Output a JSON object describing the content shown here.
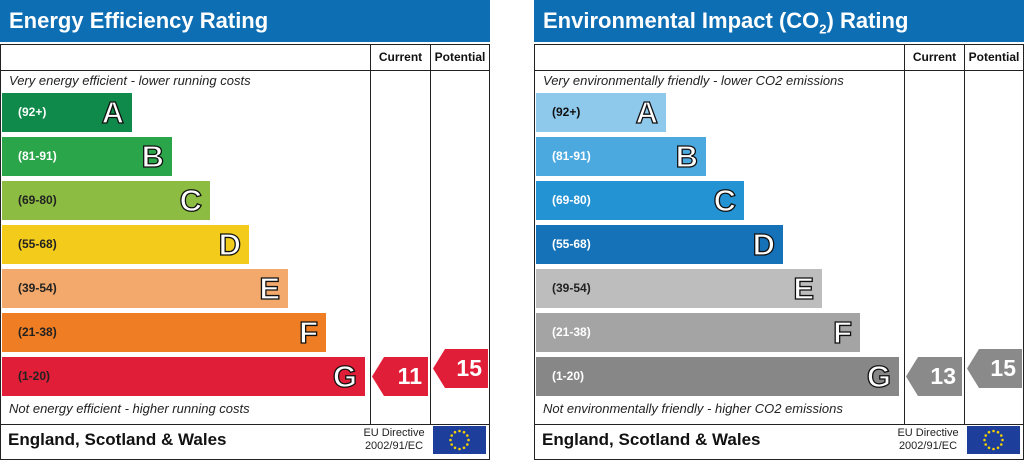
{
  "charts": [
    {
      "title_main": "Energy Efficiency Rating",
      "title_sub": "",
      "title_after": "",
      "col_current": "Current",
      "col_potential": "Potential",
      "note_top": "Very energy efficient - lower running costs",
      "note_bottom": "Not energy efficient - higher running costs",
      "footer": "England, Scotland & Wales",
      "directive_line1": "EU Directive",
      "directive_line2": "2002/91/EC",
      "current_value": "11",
      "potential_value": "15",
      "current_color": "#e01e37",
      "potential_color": "#e01e37"
    },
    {
      "title_main": "Environmental Impact (CO",
      "title_sub": "2",
      "title_after": ") Rating",
      "col_current": "Current",
      "col_potential": "Potential",
      "note_top": "Very environmentally friendly - lower CO2 emissions",
      "note_bottom": "Not environmentally friendly - higher CO2 emissions",
      "footer": "England, Scotland & Wales",
      "directive_line1": "EU Directive",
      "directive_line2": "2002/91/EC",
      "current_value": "13",
      "potential_value": "15",
      "current_color": "#8a8a8a",
      "potential_color": "#8a8a8a"
    }
  ],
  "chart_data": [
    {
      "type": "bar",
      "title": "Energy Efficiency Rating",
      "categories": [
        "A",
        "B",
        "C",
        "D",
        "E",
        "F",
        "G"
      ],
      "ranges": [
        "(92+)",
        "(81-91)",
        "(69-80)",
        "(55-68)",
        "(39-54)",
        "(21-38)",
        "(1-20)"
      ],
      "colors": [
        "#0f8a4a",
        "#2aa54a",
        "#8cbd42",
        "#f3cc1b",
        "#f2a96b",
        "#ee7d23",
        "#e01e37"
      ],
      "range_text_colors": [
        "#ffffff",
        "#ffffff",
        "#222222",
        "#222222",
        "#222222",
        "#222222",
        "#222222"
      ],
      "current": 11,
      "potential": 15
    },
    {
      "type": "bar",
      "title": "Environmental Impact (CO2) Rating",
      "categories": [
        "A",
        "B",
        "C",
        "D",
        "E",
        "F",
        "G"
      ],
      "ranges": [
        "(92+)",
        "(81-91)",
        "(69-80)",
        "(55-68)",
        "(39-54)",
        "(21-38)",
        "(1-20)"
      ],
      "colors": [
        "#8ec9ec",
        "#4ba9e0",
        "#2493d3",
        "#1672b8",
        "#bdbdbd",
        "#a4a4a4",
        "#878787"
      ],
      "range_text_colors": [
        "#111111",
        "#ffffff",
        "#ffffff",
        "#ffffff",
        "#222222",
        "#ffffff",
        "#ffffff"
      ],
      "current": 13,
      "potential": 15
    }
  ]
}
